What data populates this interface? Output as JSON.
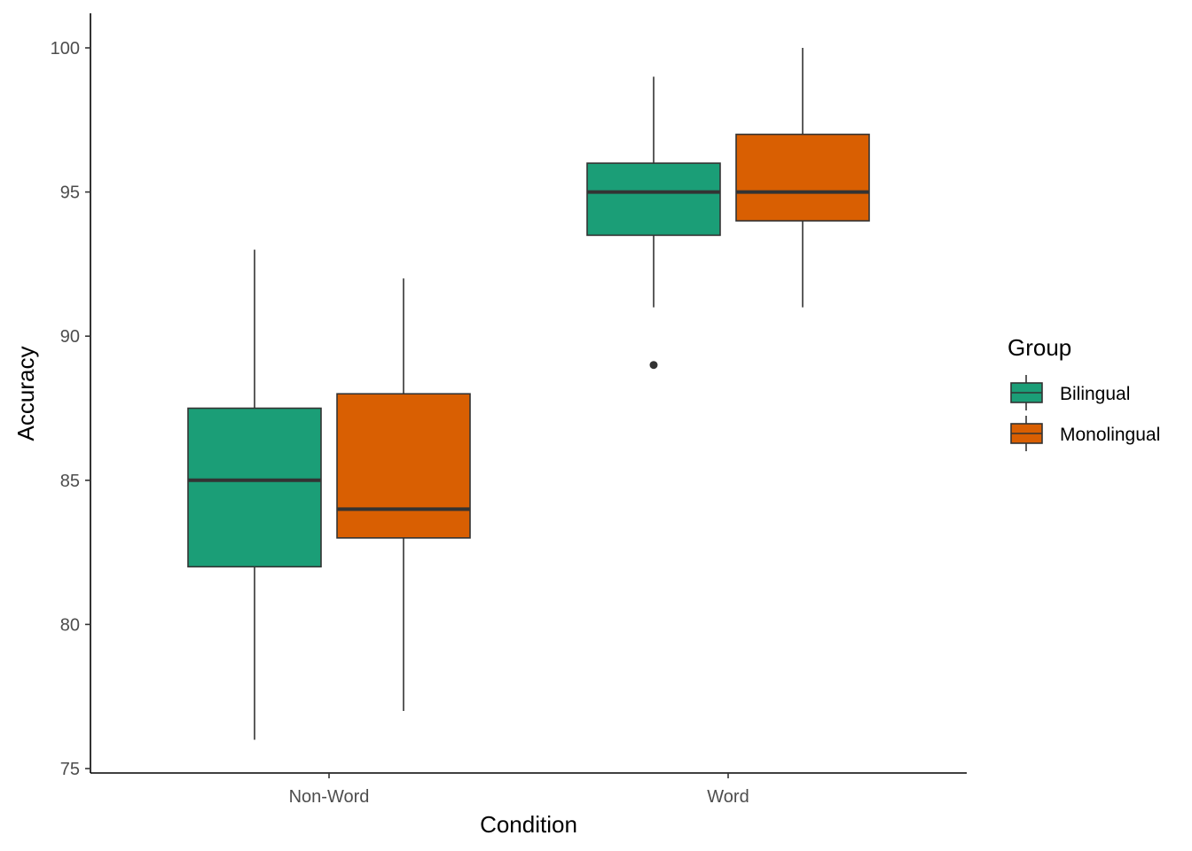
{
  "chart_data": {
    "type": "boxplot",
    "xlabel": "Condition",
    "ylabel": "Accuracy",
    "categories": [
      "Non-Word",
      "Word"
    ],
    "ylim": [
      75,
      101.2
    ],
    "yticks": [
      75,
      80,
      85,
      90,
      95,
      100
    ],
    "grid": false,
    "legend": {
      "title": "Group",
      "position": "right"
    },
    "series": [
      {
        "name": "Bilingual",
        "color": "#1b9e77",
        "boxes": [
          {
            "category": "Non-Word",
            "min": 76,
            "q1": 82,
            "median": 85,
            "q3": 87.5,
            "max": 93,
            "outliers": []
          },
          {
            "category": "Word",
            "min": 91,
            "q1": 93.5,
            "median": 95,
            "q3": 96,
            "max": 99,
            "outliers": [
              89
            ]
          }
        ]
      },
      {
        "name": "Monolingual",
        "color": "#d95f02",
        "boxes": [
          {
            "category": "Non-Word",
            "min": 77,
            "q1": 83,
            "median": 84,
            "q3": 88,
            "max": 92,
            "outliers": []
          },
          {
            "category": "Word",
            "min": 91,
            "q1": 94,
            "median": 95,
            "q3": 97,
            "max": 100,
            "outliers": []
          }
        ]
      }
    ]
  }
}
